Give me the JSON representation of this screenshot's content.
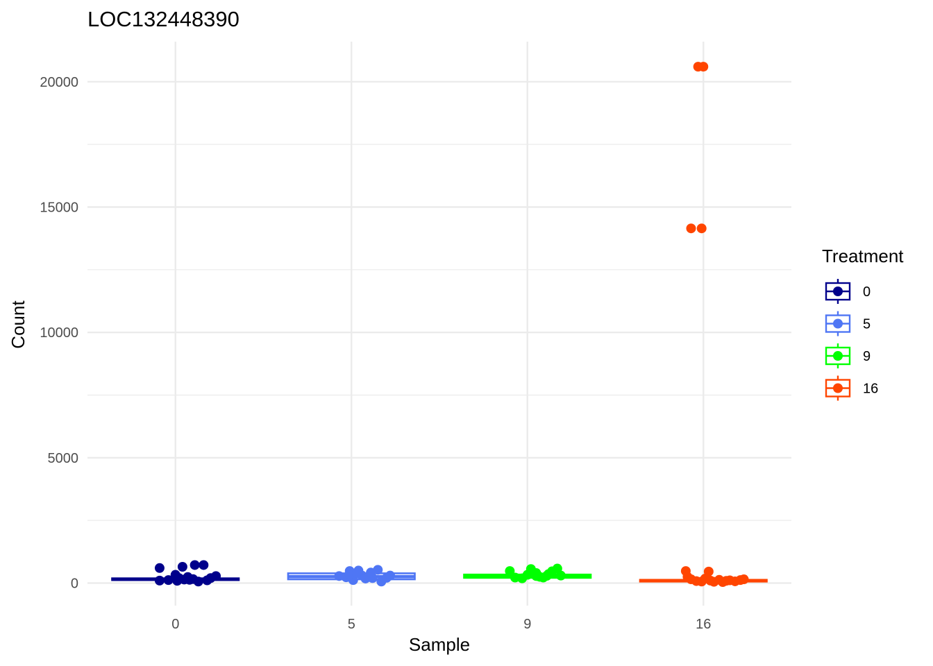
{
  "chart_data": {
    "type": "boxplot",
    "title": "LOC132448390",
    "xlabel": "Sample",
    "ylabel": "Count",
    "categories": [
      "0",
      "5",
      "9",
      "16"
    ],
    "ylim": [
      -900,
      21600
    ],
    "yticks": [
      0,
      5000,
      10000,
      15000,
      20000
    ],
    "yticks_labels": [
      "0",
      "5000",
      "10000",
      "15000",
      "20000"
    ],
    "grid": true,
    "legend": {
      "title": "Treatment",
      "position": "right",
      "entries": [
        "0",
        "5",
        "9",
        "16"
      ]
    },
    "series": [
      {
        "name": "0",
        "color": "#00008B",
        "box": {
          "q1": 120,
          "median": 150,
          "q3": 190
        },
        "points": [
          [
            -0.09,
            600
          ],
          [
            0.0,
            330
          ],
          [
            0.04,
            650
          ],
          [
            0.08,
            130
          ],
          [
            0.11,
            720
          ],
          [
            0.16,
            720
          ],
          [
            -0.09,
            100
          ],
          [
            -0.04,
            120
          ],
          [
            0.01,
            90
          ],
          [
            0.05,
            140
          ],
          [
            0.1,
            160
          ],
          [
            0.13,
            60
          ],
          [
            0.18,
            110
          ],
          [
            0.2,
            200
          ],
          [
            0.23,
            280
          ],
          [
            0.02,
            200
          ],
          [
            0.07,
            240
          ]
        ]
      },
      {
        "name": "5",
        "color": "#4F76F4",
        "box": {
          "q1": 150,
          "median": 260,
          "q3": 390
        },
        "points": [
          [
            -0.07,
            280
          ],
          [
            -0.03,
            230
          ],
          [
            -0.01,
            480
          ],
          [
            0.01,
            120
          ],
          [
            0.04,
            500
          ],
          [
            0.06,
            300
          ],
          [
            0.08,
            180
          ],
          [
            0.1,
            260
          ],
          [
            0.12,
            200
          ],
          [
            0.15,
            530
          ],
          [
            0.17,
            60
          ],
          [
            0.2,
            210
          ],
          [
            0.22,
            300
          ],
          [
            -0.01,
            350
          ],
          [
            0.03,
            400
          ],
          [
            0.11,
            420
          ]
        ]
      },
      {
        "name": "9",
        "color": "#00FF00",
        "box": {
          "q1": 210,
          "median": 280,
          "q3": 340
        },
        "points": [
          [
            -0.1,
            480
          ],
          [
            -0.07,
            220
          ],
          [
            -0.03,
            190
          ],
          [
            0.0,
            330
          ],
          [
            0.02,
            560
          ],
          [
            0.05,
            400
          ],
          [
            0.07,
            250
          ],
          [
            0.09,
            220
          ],
          [
            0.12,
            360
          ],
          [
            0.14,
            470
          ],
          [
            0.17,
            580
          ],
          [
            0.19,
            300
          ],
          [
            0.05,
            280
          ],
          [
            0.11,
            290
          ]
        ]
      },
      {
        "name": "16",
        "color": "#FF4500",
        "box": {
          "q1": 60,
          "median": 90,
          "q3": 130
        },
        "points": [
          [
            -0.1,
            480
          ],
          [
            -0.09,
            250
          ],
          [
            -0.07,
            150
          ],
          [
            -0.04,
            80
          ],
          [
            -0.01,
            60
          ],
          [
            0.01,
            180
          ],
          [
            0.03,
            460
          ],
          [
            0.04,
            100
          ],
          [
            0.06,
            50
          ],
          [
            0.09,
            130
          ],
          [
            0.11,
            40
          ],
          [
            0.13,
            90
          ],
          [
            0.15,
            110
          ],
          [
            0.18,
            70
          ],
          [
            0.21,
            120
          ],
          [
            0.23,
            150
          ],
          [
            -0.03,
            20600
          ],
          [
            0.0,
            20600
          ],
          [
            -0.07,
            14150
          ],
          [
            -0.01,
            14150
          ]
        ]
      }
    ]
  }
}
